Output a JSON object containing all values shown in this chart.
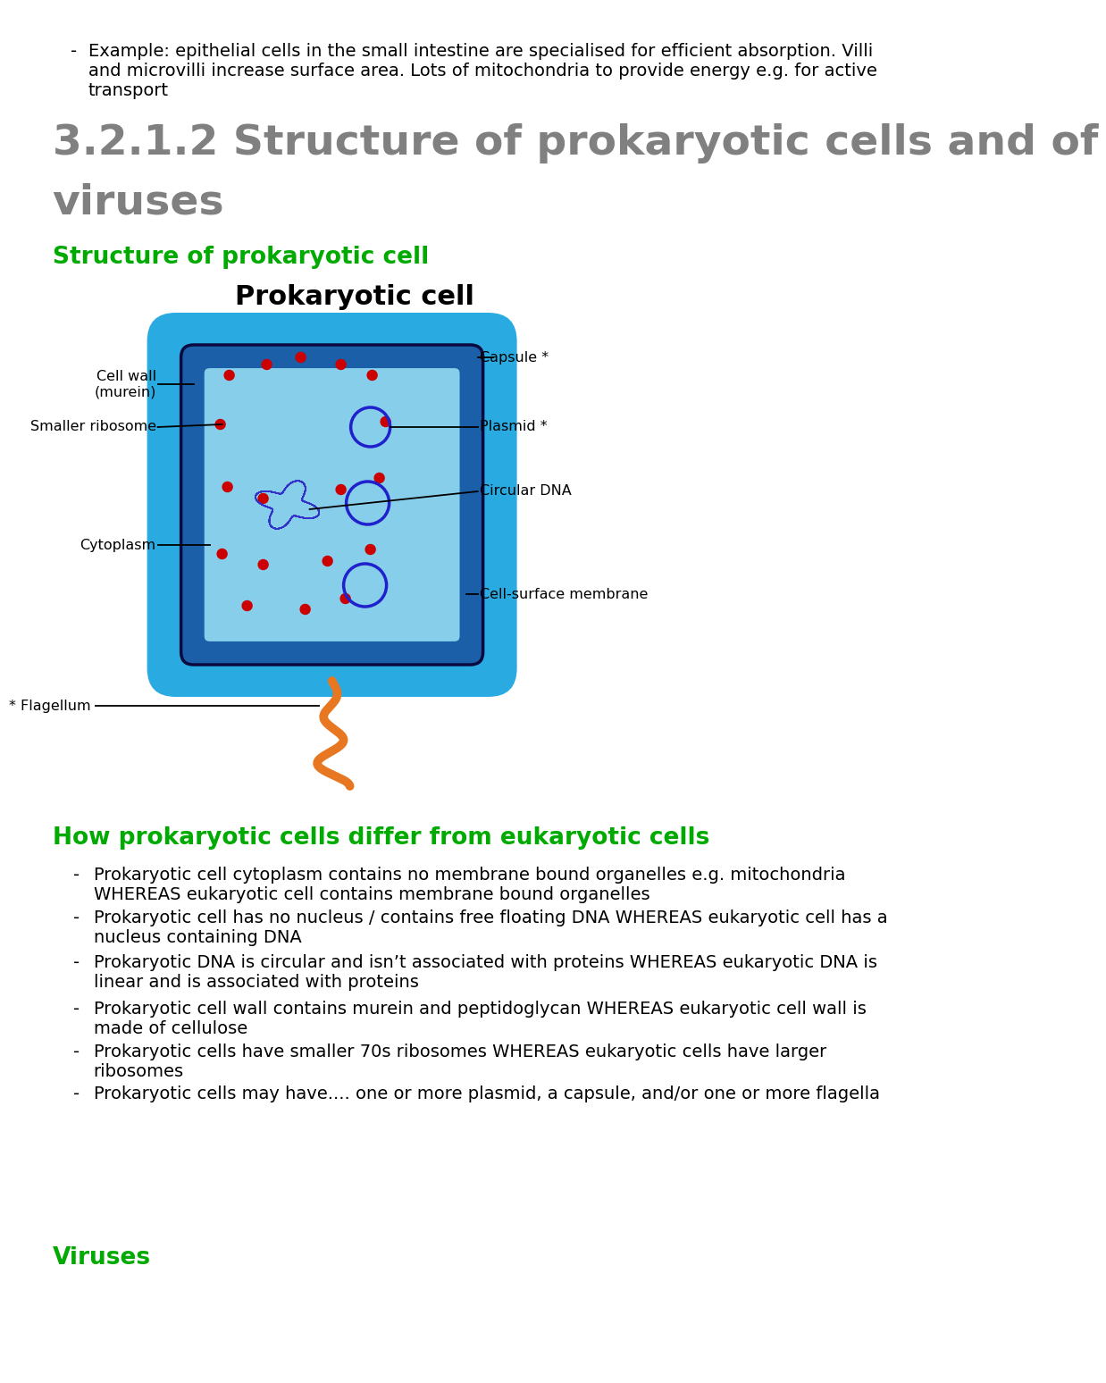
{
  "bg_color": "#ffffff",
  "top_bullet_line1": "Example: epithelial cells in the small intestine are specialised for efficient absorption. Villi",
  "top_bullet_line2": "and microvilli increase surface area. Lots of mitochondria to provide energy e.g. for active",
  "top_bullet_line3": "transport",
  "main_title_line1": "3.2.1.2 Structure of prokaryotic cells and of",
  "main_title_line2": "viruses",
  "main_title_color": "#808080",
  "section1_heading": "Structure of prokaryotic cell",
  "section1_heading_color": "#00aa00",
  "diagram_title": "Prokaryotic cell",
  "diagram_title_color": "#000000",
  "section2_heading": "How prokaryotic cells differ from eukaryotic cells",
  "section2_heading_color": "#00aa00",
  "section2_bullets": [
    "Prokaryotic cell cytoplasm contains no membrane bound organelles e.g. mitochondria\nWHEREAS eukaryotic cell contains membrane bound organelles",
    "Prokaryotic cell has no nucleus / contains free floating DNA WHEREAS eukaryotic cell has a\nnucleus containing DNA",
    "Prokaryotic DNA is circular and isn’t associated with proteins WHEREAS eukaryotic DNA is\nlinear and is associated with proteins",
    "Prokaryotic cell wall contains murein and peptidoglycan WHEREAS eukaryotic cell wall is\nmade of cellulose",
    "Prokaryotic cells have smaller 70s ribosomes WHEREAS eukaryotic cells have larger\nribosomes",
    "Prokaryotic cells may have.... one or more plasmid, a capsule, and/or one or more flagella"
  ],
  "viruses_heading": "Viruses",
  "viruses_heading_color": "#00aa00",
  "capsule_color": "#29abe2",
  "cell_wall_color": "#1a5fa8",
  "cytoplasm_color": "#87ceeb",
  "plasmid_color": "#2020cc",
  "dna_color": "#3333cc",
  "ribosome_color": "#cc0000",
  "flagellum_color": "#e87722",
  "label_color": "#000000",
  "font_family": "DejaVu Sans"
}
